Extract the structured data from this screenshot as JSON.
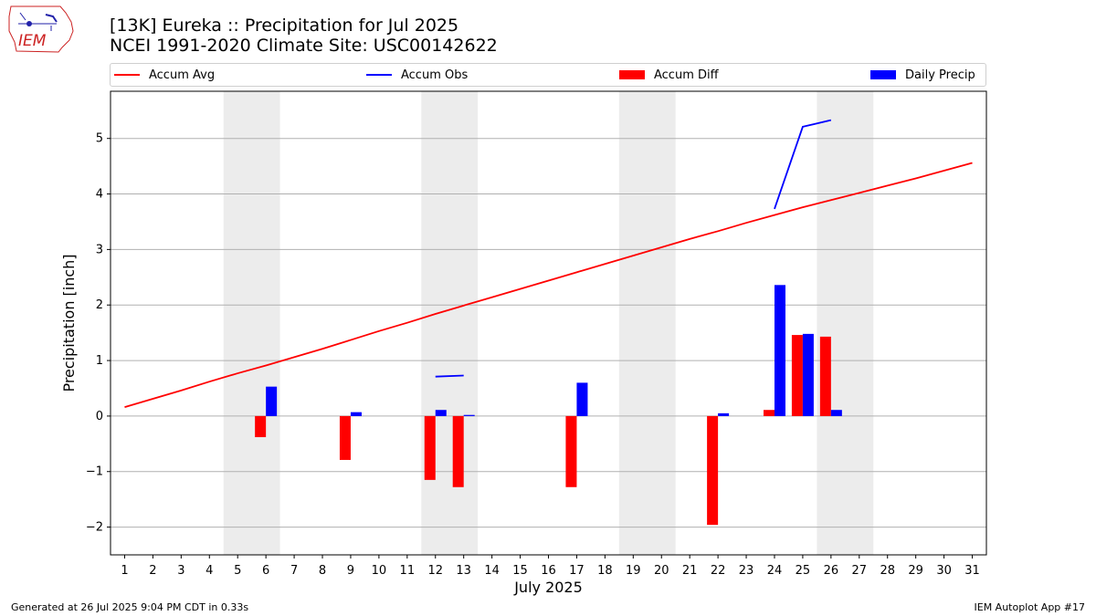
{
  "header": {
    "title_line1": "[13K] Eureka :: Precipitation for Jul 2025",
    "title_line2": "NCEI 1991-2020 Climate Site: USC00142622"
  },
  "logo": {
    "text": "IEM",
    "color": "#cc2222"
  },
  "footer": {
    "left": "Generated at 26 Jul 2025 9:04 PM CDT in 0.33s",
    "right": "IEM Autoplot App #17"
  },
  "chart_data": {
    "type": "bar",
    "xlabel": "July 2025",
    "ylabel": "Precipitation [inch]",
    "xlim": [
      0.5,
      31.5
    ],
    "ylim": [
      -2.5,
      5.85
    ],
    "yticks": [
      -2,
      -1,
      0,
      1,
      2,
      3,
      4,
      5
    ],
    "ytick_labels": [
      "−2",
      "−1",
      "0",
      "1",
      "2",
      "3",
      "4",
      "5"
    ],
    "xticks": [
      1,
      2,
      3,
      4,
      5,
      6,
      7,
      8,
      9,
      10,
      11,
      12,
      13,
      14,
      15,
      16,
      17,
      18,
      19,
      20,
      21,
      22,
      23,
      24,
      25,
      26,
      27,
      28,
      29,
      30,
      31
    ],
    "grid": "horizontal",
    "legend_position": "top",
    "weekend_shading": [
      [
        5,
        6
      ],
      [
        12,
        13
      ],
      [
        19,
        20
      ],
      [
        26,
        27
      ]
    ],
    "series": [
      {
        "name": "Accum Avg",
        "kind": "line",
        "color": "#ff0000",
        "x": [
          1,
          2,
          3,
          4,
          5,
          6,
          7,
          8,
          9,
          10,
          11,
          12,
          13,
          14,
          15,
          16,
          17,
          18,
          19,
          20,
          21,
          22,
          23,
          24,
          25,
          26,
          27,
          28,
          29,
          30,
          31
        ],
        "values": [
          0.16,
          0.31,
          0.46,
          0.62,
          0.77,
          0.91,
          1.06,
          1.21,
          1.37,
          1.53,
          1.68,
          1.84,
          1.99,
          2.14,
          2.29,
          2.44,
          2.59,
          2.74,
          2.89,
          3.04,
          3.19,
          3.33,
          3.48,
          3.62,
          3.76,
          3.89,
          4.02,
          4.15,
          4.28,
          4.42,
          4.56
        ]
      },
      {
        "name": "Accum Obs",
        "kind": "line",
        "color": "#0000ff",
        "segments": [
          {
            "x": [
              12,
              13
            ],
            "values": [
              0.71,
              0.73
            ]
          },
          {
            "x": [
              24,
              25,
              26
            ],
            "values": [
              3.73,
              5.21,
              5.33
            ]
          }
        ]
      },
      {
        "name": "Accum Diff",
        "kind": "bar",
        "color": "#ff0000",
        "x": [
          6,
          9,
          12,
          13,
          17,
          22,
          24,
          25,
          26
        ],
        "values": [
          -0.38,
          -0.79,
          -1.15,
          -1.28,
          -1.28,
          -1.96,
          0.11,
          1.46,
          1.43
        ]
      },
      {
        "name": "Daily Precip",
        "kind": "bar",
        "color": "#0000ff",
        "x": [
          6,
          9,
          12,
          13,
          17,
          22,
          24,
          25,
          26
        ],
        "values": [
          0.53,
          0.07,
          0.11,
          0.02,
          0.6,
          0.05,
          2.36,
          1.48,
          0.11
        ]
      }
    ]
  }
}
